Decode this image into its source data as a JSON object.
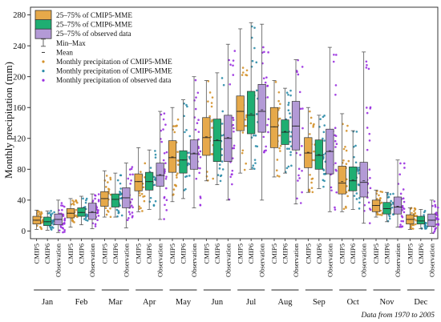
{
  "chart_data": {
    "type": "box",
    "title": "",
    "ylabel": "Monthly precipitation (mm)",
    "ylim": [
      -10,
      290
    ],
    "yticks": [
      0,
      40,
      80,
      120,
      160,
      200,
      240,
      280
    ],
    "categories": [
      "Jan",
      "Feb",
      "Mar",
      "Apr",
      "May",
      "Jun",
      "Jul",
      "Aug",
      "Sep",
      "Oct",
      "Nov",
      "Dec"
    ],
    "groups": [
      "CMIP5",
      "CMIP6",
      "Observation"
    ],
    "footnote": "Data from 1970 to 2005",
    "legend": {
      "position": "top-left",
      "entries": [
        {
          "key": "cmip5_box",
          "label": "25–75% of CMIP5-MME"
        },
        {
          "key": "cmip6_box",
          "label": "25–75% of CMIP6-MME"
        },
        {
          "key": "obs_box",
          "label": "25–75% of observed data"
        },
        {
          "key": "minmax",
          "label": "Min–Max"
        },
        {
          "key": "mean",
          "label": "Mean"
        },
        {
          "key": "cmip5_pts",
          "label": "Monthly precipitation of CMIP5-MME"
        },
        {
          "key": "cmip6_pts",
          "label": "Monthly precipitation of CMIP6-MME"
        },
        {
          "key": "obs_pts",
          "label": "Monthly precipitation of observed data"
        }
      ]
    },
    "colors": {
      "cmip5": "#E6A94A",
      "cmip6": "#1FAE72",
      "obs": "#B39AD6",
      "cmip5_pts": "#D4912A",
      "cmip6_pts": "#2B8CA8",
      "obs_pts": "#9A30E0"
    },
    "series": [
      {
        "name": "CMIP5",
        "stats": [
          {
            "min": 2,
            "q1": 9,
            "median": 14,
            "q3": 19,
            "max": 27,
            "mean": 14
          },
          {
            "min": 5,
            "q1": 17,
            "median": 23,
            "q3": 29,
            "max": 42,
            "mean": 23
          },
          {
            "min": 18,
            "q1": 32,
            "median": 42,
            "q3": 51,
            "max": 78,
            "mean": 42
          },
          {
            "min": 25,
            "q1": 52,
            "median": 64,
            "q3": 74,
            "max": 108,
            "mean": 64
          },
          {
            "min": 38,
            "q1": 76,
            "median": 95,
            "q3": 117,
            "max": 160,
            "mean": 96
          },
          {
            "min": 65,
            "q1": 98,
            "median": 121,
            "q3": 147,
            "max": 195,
            "mean": 122
          },
          {
            "min": 75,
            "q1": 130,
            "median": 155,
            "q3": 175,
            "max": 262,
            "mean": 155
          },
          {
            "min": 70,
            "q1": 108,
            "median": 135,
            "q3": 160,
            "max": 195,
            "mean": 135
          },
          {
            "min": 50,
            "q1": 82,
            "median": 101,
            "q3": 121,
            "max": 160,
            "mean": 102
          },
          {
            "min": 25,
            "q1": 48,
            "median": 62,
            "q3": 84,
            "max": 152,
            "mean": 64
          },
          {
            "min": 18,
            "q1": 25,
            "median": 33,
            "q3": 40,
            "max": 53,
            "mean": 33
          },
          {
            "min": 2,
            "q1": 9,
            "median": 15,
            "q3": 21,
            "max": 30,
            "mean": 15
          }
        ]
      },
      {
        "name": "CMIP6",
        "stats": [
          {
            "min": 1,
            "q1": 7,
            "median": 12,
            "q3": 18,
            "max": 26,
            "mean": 12
          },
          {
            "min": 8,
            "q1": 19,
            "median": 24,
            "q3": 30,
            "max": 45,
            "mean": 24
          },
          {
            "min": 18,
            "q1": 31,
            "median": 41,
            "q3": 48,
            "max": 75,
            "mean": 41
          },
          {
            "min": 28,
            "q1": 53,
            "median": 64,
            "q3": 76,
            "max": 105,
            "mean": 64
          },
          {
            "min": 42,
            "q1": 75,
            "median": 92,
            "q3": 104,
            "max": 170,
            "mean": 92
          },
          {
            "min": 60,
            "q1": 90,
            "median": 117,
            "q3": 145,
            "max": 205,
            "mean": 118
          },
          {
            "min": 80,
            "q1": 126,
            "median": 150,
            "q3": 181,
            "max": 270,
            "mean": 152
          },
          {
            "min": 75,
            "q1": 112,
            "median": 128,
            "q3": 144,
            "max": 185,
            "mean": 129
          },
          {
            "min": 55,
            "q1": 80,
            "median": 98,
            "q3": 118,
            "max": 150,
            "mean": 99
          },
          {
            "min": 28,
            "q1": 52,
            "median": 65,
            "q3": 83,
            "max": 130,
            "mean": 66
          },
          {
            "min": 12,
            "q1": 22,
            "median": 29,
            "q3": 37,
            "max": 50,
            "mean": 29
          },
          {
            "min": 3,
            "q1": 9,
            "median": 13,
            "q3": 19,
            "max": 28,
            "mean": 13
          }
        ]
      },
      {
        "name": "Observation",
        "stats": [
          {
            "min": -2,
            "q1": 8,
            "median": 15,
            "q3": 22,
            "max": 40,
            "mean": 15
          },
          {
            "min": 3,
            "q1": 15,
            "median": 24,
            "q3": 36,
            "max": 48,
            "mean": 25
          },
          {
            "min": 4,
            "q1": 30,
            "median": 43,
            "q3": 56,
            "max": 88,
            "mean": 43
          },
          {
            "min": 15,
            "q1": 58,
            "median": 72,
            "q3": 88,
            "max": 155,
            "mean": 73
          },
          {
            "min": 30,
            "q1": 80,
            "median": 100,
            "q3": 118,
            "max": 200,
            "mean": 101
          },
          {
            "min": 40,
            "q1": 90,
            "median": 120,
            "q3": 150,
            "max": 242,
            "mean": 121
          },
          {
            "min": 40,
            "q1": 128,
            "median": 155,
            "q3": 190,
            "max": 268,
            "mean": 157
          },
          {
            "min": 35,
            "q1": 105,
            "median": 136,
            "q3": 168,
            "max": 222,
            "mean": 136
          },
          {
            "min": 25,
            "q1": 74,
            "median": 103,
            "q3": 132,
            "max": 238,
            "mean": 104
          },
          {
            "min": 10,
            "q1": 44,
            "median": 63,
            "q3": 89,
            "max": 232,
            "mean": 65
          },
          {
            "min": 5,
            "q1": 22,
            "median": 31,
            "q3": 44,
            "max": 92,
            "mean": 32
          },
          {
            "min": -3,
            "q1": 6,
            "median": 14,
            "q3": 22,
            "max": 40,
            "mean": 14
          }
        ]
      }
    ]
  }
}
